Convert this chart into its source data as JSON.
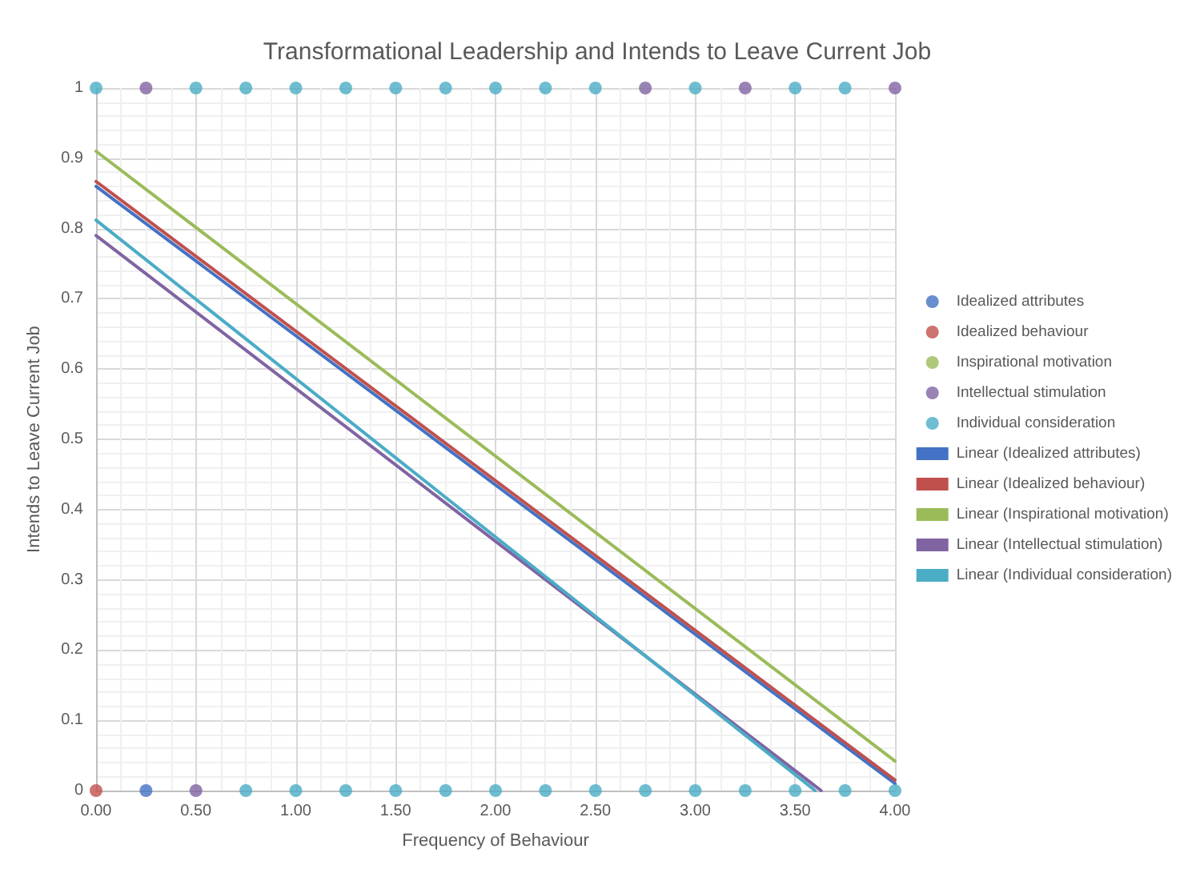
{
  "chart_data": {
    "type": "scatter",
    "title": "Transformational Leadership and Intends to Leave Current Job",
    "xlabel": "Frequency of Behaviour",
    "ylabel": "Intends to Leave Current Job",
    "xlim": [
      0,
      4
    ],
    "xticks": [
      {
        "value": 0,
        "label": "0.00"
      },
      {
        "value": 0.5,
        "label": "0.50"
      },
      {
        "value": 1,
        "label": "1.00"
      },
      {
        "value": 1.5,
        "label": "1.50"
      },
      {
        "value": 2,
        "label": "2.00"
      },
      {
        "value": 2.5,
        "label": "2.50"
      },
      {
        "value": 3,
        "label": "3.00"
      },
      {
        "value": 3.5,
        "label": "3.50"
      },
      {
        "value": 4,
        "label": "4.00"
      }
    ],
    "ylim": [
      0,
      1
    ],
    "yticks": [
      0,
      0.1,
      0.2,
      0.3,
      0.4,
      0.5,
      0.6,
      0.7,
      0.8,
      0.9,
      1
    ],
    "grid": true,
    "legend": "right",
    "marker": "circle",
    "series": [
      {
        "name": "Idealized attributes",
        "color": "#4472c4",
        "x": [
          0.25
        ],
        "values": [
          0
        ]
      },
      {
        "name": "Idealized behaviour",
        "color": "#c0504d",
        "x": [
          0
        ],
        "values": [
          0
        ]
      },
      {
        "name": "Inspirational motivation",
        "color": "#9bbb59"
      },
      {
        "name": "Intellectual stimulation",
        "color": "#8064a2",
        "x": [
          0.25,
          2.75,
          3.25,
          4,
          0.5
        ],
        "values": [
          1,
          1,
          1,
          1,
          0
        ]
      },
      {
        "name": "Individual consideration",
        "color": "#4bacc6",
        "x": [
          0,
          0.5,
          0.75,
          1,
          1.25,
          1.5,
          1.75,
          2,
          2.25,
          2.5,
          3,
          3.5,
          3.75,
          0.75,
          1,
          1.25,
          1.5,
          1.75,
          2,
          2.25,
          2.5,
          2.75,
          3,
          3.25,
          3.5,
          3.75,
          4
        ],
        "values": [
          1,
          1,
          1,
          1,
          1,
          1,
          1,
          1,
          1,
          1,
          1,
          1,
          1,
          0,
          0,
          0,
          0,
          0,
          0,
          0,
          0,
          0,
          0,
          0,
          0,
          0,
          0
        ]
      },
      {
        "name": "Linear (Idealized attributes)",
        "type": "line",
        "marker": "none",
        "color": "#4472c4",
        "x": [
          0,
          4
        ],
        "values": [
          0.86,
          0.01
        ]
      },
      {
        "name": "Linear (Idealized behaviour)",
        "type": "line",
        "marker": "none",
        "color": "#c0504d",
        "x": [
          0,
          4
        ],
        "values": [
          0.867,
          0.015
        ]
      },
      {
        "name": "Linear (Inspirational motivation)",
        "type": "line",
        "marker": "none",
        "color": "#9bbb59",
        "x": [
          0,
          4
        ],
        "values": [
          0.91,
          0.042
        ]
      },
      {
        "name": "Linear (Intellectual stimulation)",
        "type": "line",
        "marker": "none",
        "color": "#8064a2",
        "x": [
          0,
          3.63
        ],
        "values": [
          0.79,
          0
        ]
      },
      {
        "name": "Linear (Individual consideration)",
        "type": "line",
        "marker": "none",
        "color": "#4bacc6",
        "x": [
          0,
          3.6
        ],
        "values": [
          0.812,
          0
        ]
      }
    ]
  }
}
